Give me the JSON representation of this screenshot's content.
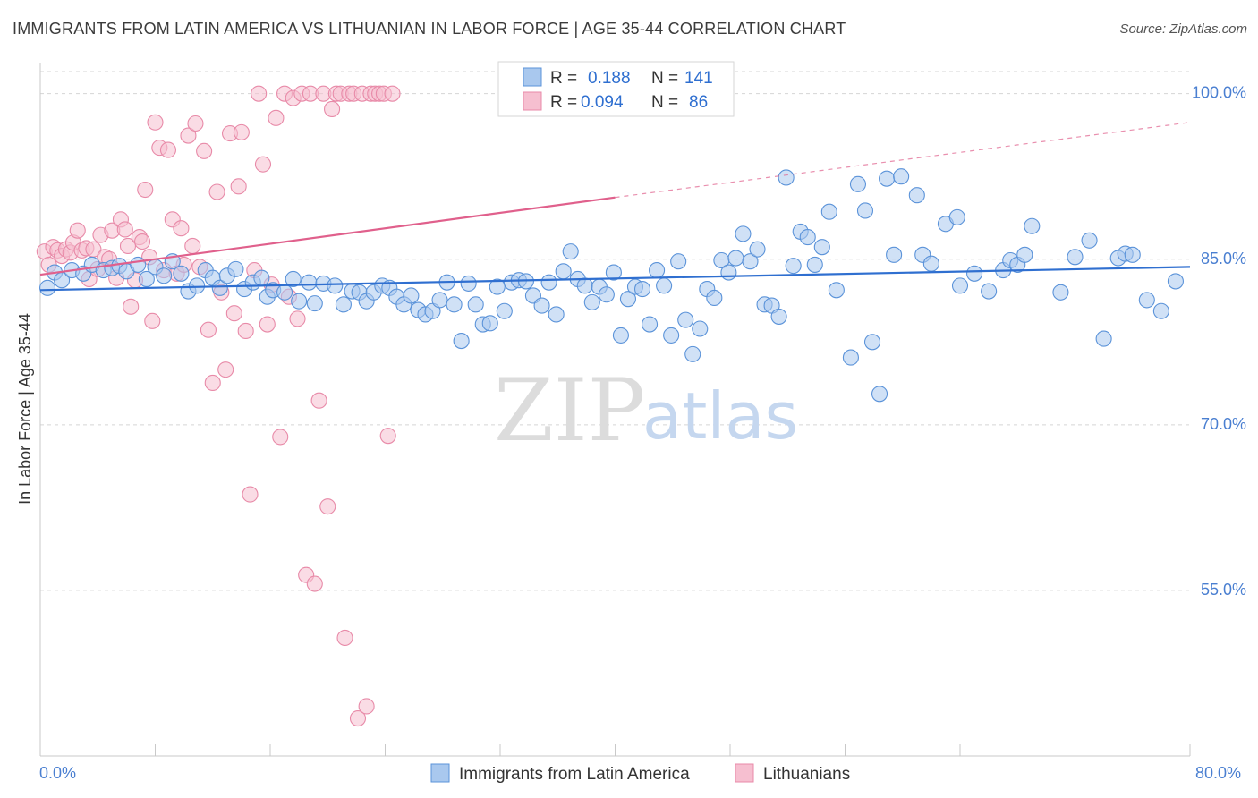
{
  "title": "IMMIGRANTS FROM LATIN AMERICA VS LITHUANIAN IN LABOR FORCE | AGE 35-44 CORRELATION CHART",
  "source": "Source: ZipAtlas.com",
  "watermark": {
    "zip": "ZIP",
    "atlas": "atlas"
  },
  "legend": {
    "blue": {
      "r_label": "R = ",
      "r_value": "0.188",
      "n_label": "N = ",
      "n_value": "141"
    },
    "pink": {
      "r_label": "R = ",
      "r_value": "0.094",
      "n_label": "N = ",
      "n_value": "86"
    }
  },
  "colors": {
    "blue_fill": "#a9c8ee",
    "blue_stroke": "#5b93d9",
    "blue_line": "#2f6fd0",
    "pink_fill": "#f6bfd0",
    "pink_stroke": "#e88aa8",
    "pink_line": "#e0608c",
    "grid": "#d5d5d5",
    "tick_text": "#4a7fd1"
  },
  "chart_data": {
    "type": "scatter",
    "title": "IMMIGRANTS FROM LATIN AMERICA VS LITHUANIAN IN LABOR FORCE | AGE 35-44 CORRELATION CHART",
    "xlabel": "",
    "ylabel": "In Labor Force | Age 35-44",
    "xlim": [
      0,
      80
    ],
    "ylim": [
      40,
      102
    ],
    "x_tick_labels": [
      "0.0%",
      "80.0%"
    ],
    "y_ticks": [
      55,
      70,
      85,
      100
    ],
    "y_tick_labels": [
      "55.0%",
      "70.0%",
      "85.0%",
      "100.0%"
    ],
    "grid": true,
    "legend_position": "top-center",
    "series": [
      {
        "name": "Immigrants from Latin America",
        "color": "#a9c8ee",
        "trend": {
          "x": [
            0,
            80
          ],
          "y": [
            82.2,
            84.3
          ],
          "style": "solid"
        },
        "points": [
          [
            0.5,
            82.4
          ],
          [
            1.0,
            83.8
          ],
          [
            1.5,
            83.1
          ],
          [
            2.2,
            84.0
          ],
          [
            3.0,
            83.7
          ],
          [
            3.6,
            84.5
          ],
          [
            4.4,
            84.0
          ],
          [
            5.0,
            84.2
          ],
          [
            5.5,
            84.4
          ],
          [
            6.0,
            83.9
          ],
          [
            6.8,
            84.5
          ],
          [
            7.4,
            83.2
          ],
          [
            8.0,
            84.3
          ],
          [
            8.6,
            83.5
          ],
          [
            9.2,
            84.8
          ],
          [
            9.8,
            83.7
          ],
          [
            10.3,
            82.1
          ],
          [
            10.9,
            82.6
          ],
          [
            11.5,
            84.0
          ],
          [
            12.0,
            83.3
          ],
          [
            12.5,
            82.4
          ],
          [
            13.0,
            83.5
          ],
          [
            13.6,
            84.1
          ],
          [
            14.2,
            82.3
          ],
          [
            14.8,
            82.9
          ],
          [
            15.4,
            83.3
          ],
          [
            15.8,
            81.6
          ],
          [
            16.2,
            82.2
          ],
          [
            17.0,
            82.0
          ],
          [
            17.6,
            83.2
          ],
          [
            18.0,
            81.2
          ],
          [
            18.7,
            82.9
          ],
          [
            19.1,
            81.0
          ],
          [
            19.7,
            82.8
          ],
          [
            20.5,
            82.6
          ],
          [
            21.1,
            80.9
          ],
          [
            21.7,
            82.1
          ],
          [
            22.2,
            82.0
          ],
          [
            22.7,
            81.2
          ],
          [
            23.2,
            82.0
          ],
          [
            23.8,
            82.6
          ],
          [
            24.3,
            82.4
          ],
          [
            24.8,
            81.6
          ],
          [
            25.3,
            80.9
          ],
          [
            25.8,
            81.7
          ],
          [
            26.3,
            80.4
          ],
          [
            26.8,
            80.0
          ],
          [
            27.3,
            80.3
          ],
          [
            27.8,
            81.3
          ],
          [
            28.3,
            82.9
          ],
          [
            28.8,
            80.9
          ],
          [
            29.3,
            77.6
          ],
          [
            29.8,
            82.8
          ],
          [
            30.3,
            80.9
          ],
          [
            30.8,
            79.1
          ],
          [
            31.3,
            79.2
          ],
          [
            31.8,
            82.5
          ],
          [
            32.3,
            80.3
          ],
          [
            32.8,
            82.9
          ],
          [
            33.3,
            83.1
          ],
          [
            33.8,
            83.0
          ],
          [
            34.3,
            81.7
          ],
          [
            34.9,
            80.8
          ],
          [
            35.4,
            82.9
          ],
          [
            35.9,
            80.0
          ],
          [
            36.4,
            83.9
          ],
          [
            36.9,
            85.7
          ],
          [
            37.4,
            83.2
          ],
          [
            37.9,
            82.6
          ],
          [
            38.4,
            81.1
          ],
          [
            38.9,
            82.5
          ],
          [
            39.4,
            81.8
          ],
          [
            39.9,
            83.8
          ],
          [
            40.4,
            78.1
          ],
          [
            40.9,
            81.4
          ],
          [
            41.4,
            82.5
          ],
          [
            41.9,
            82.3
          ],
          [
            42.4,
            79.1
          ],
          [
            42.9,
            84.0
          ],
          [
            43.4,
            82.6
          ],
          [
            43.9,
            78.1
          ],
          [
            44.4,
            84.8
          ],
          [
            44.9,
            79.5
          ],
          [
            45.4,
            76.4
          ],
          [
            45.9,
            78.7
          ],
          [
            46.4,
            82.3
          ],
          [
            46.9,
            81.5
          ],
          [
            47.4,
            84.9
          ],
          [
            47.9,
            83.8
          ],
          [
            48.4,
            85.1
          ],
          [
            48.9,
            87.3
          ],
          [
            49.4,
            84.8
          ],
          [
            49.9,
            85.9
          ],
          [
            50.4,
            80.9
          ],
          [
            50.9,
            80.8
          ],
          [
            51.4,
            79.8
          ],
          [
            51.9,
            92.4
          ],
          [
            52.4,
            84.4
          ],
          [
            52.9,
            87.5
          ],
          [
            53.4,
            87.0
          ],
          [
            53.9,
            84.5
          ],
          [
            54.4,
            86.1
          ],
          [
            54.9,
            89.3
          ],
          [
            55.4,
            82.2
          ],
          [
            56.4,
            76.1
          ],
          [
            56.9,
            91.8
          ],
          [
            57.4,
            89.4
          ],
          [
            57.9,
            77.5
          ],
          [
            58.4,
            72.8
          ],
          [
            58.9,
            92.3
          ],
          [
            59.4,
            85.4
          ],
          [
            59.9,
            92.5
          ],
          [
            61.0,
            90.8
          ],
          [
            61.4,
            85.4
          ],
          [
            62.0,
            84.6
          ],
          [
            63.0,
            88.2
          ],
          [
            63.8,
            88.8
          ],
          [
            64.0,
            82.6
          ],
          [
            65.0,
            83.7
          ],
          [
            66.0,
            82.1
          ],
          [
            67.0,
            84.0
          ],
          [
            67.5,
            84.9
          ],
          [
            68.0,
            84.5
          ],
          [
            68.5,
            85.4
          ],
          [
            69.0,
            88.0
          ],
          [
            71.0,
            82.0
          ],
          [
            72.0,
            85.2
          ],
          [
            73.0,
            86.7
          ],
          [
            74.0,
            77.8
          ],
          [
            75.0,
            85.1
          ],
          [
            75.5,
            85.5
          ],
          [
            76.0,
            85.4
          ],
          [
            77.0,
            81.3
          ],
          [
            78.0,
            80.3
          ],
          [
            79.0,
            83.0
          ]
        ]
      },
      {
        "name": "Lithuanians",
        "color": "#f6bfd0",
        "trend": {
          "x": [
            0,
            40,
            80
          ],
          "y": [
            83.6,
            90.6,
            97.4
          ],
          "style": "solid-then-dashed"
        },
        "points": [
          [
            0.3,
            85.7
          ],
          [
            0.6,
            84.5
          ],
          [
            0.9,
            86.1
          ],
          [
            1.2,
            85.8
          ],
          [
            1.5,
            85.3
          ],
          [
            1.8,
            85.9
          ],
          [
            2.1,
            85.6
          ],
          [
            2.3,
            86.5
          ],
          [
            2.6,
            87.6
          ],
          [
            2.9,
            85.8
          ],
          [
            3.2,
            86.0
          ],
          [
            3.4,
            83.2
          ],
          [
            3.7,
            85.9
          ],
          [
            4.0,
            84.1
          ],
          [
            4.2,
            87.2
          ],
          [
            4.5,
            85.2
          ],
          [
            4.8,
            85.0
          ],
          [
            5.0,
            87.6
          ],
          [
            5.3,
            83.3
          ],
          [
            5.6,
            88.6
          ],
          [
            5.9,
            87.7
          ],
          [
            6.1,
            86.2
          ],
          [
            6.3,
            80.7
          ],
          [
            6.6,
            83.1
          ],
          [
            6.9,
            87.0
          ],
          [
            7.1,
            86.6
          ],
          [
            7.3,
            91.3
          ],
          [
            7.6,
            85.2
          ],
          [
            7.8,
            79.4
          ],
          [
            8.0,
            97.4
          ],
          [
            8.3,
            95.1
          ],
          [
            8.6,
            84.0
          ],
          [
            8.9,
            94.9
          ],
          [
            9.2,
            88.6
          ],
          [
            9.5,
            83.7
          ],
          [
            9.8,
            87.8
          ],
          [
            10.0,
            84.5
          ],
          [
            10.3,
            96.2
          ],
          [
            10.6,
            86.2
          ],
          [
            10.8,
            97.3
          ],
          [
            11.1,
            84.3
          ],
          [
            11.4,
            94.8
          ],
          [
            11.7,
            78.6
          ],
          [
            12.0,
            73.8
          ],
          [
            12.3,
            91.1
          ],
          [
            12.6,
            82.0
          ],
          [
            12.9,
            75.0
          ],
          [
            13.2,
            96.4
          ],
          [
            13.5,
            80.1
          ],
          [
            13.8,
            91.6
          ],
          [
            14.0,
            96.5
          ],
          [
            14.3,
            78.5
          ],
          [
            14.6,
            63.7
          ],
          [
            14.9,
            84.0
          ],
          [
            15.2,
            100.0
          ],
          [
            15.5,
            93.6
          ],
          [
            15.8,
            79.1
          ],
          [
            16.1,
            82.7
          ],
          [
            16.4,
            97.8
          ],
          [
            16.7,
            68.9
          ],
          [
            17.0,
            100.0
          ],
          [
            17.3,
            81.6
          ],
          [
            17.6,
            99.6
          ],
          [
            17.9,
            79.6
          ],
          [
            18.2,
            100.0
          ],
          [
            18.5,
            56.4
          ],
          [
            18.8,
            100.0
          ],
          [
            19.1,
            55.6
          ],
          [
            19.4,
            72.2
          ],
          [
            19.7,
            100.0
          ],
          [
            20.0,
            62.6
          ],
          [
            20.3,
            98.6
          ],
          [
            20.6,
            100.0
          ],
          [
            20.9,
            100.0
          ],
          [
            21.2,
            50.7
          ],
          [
            21.5,
            100.0
          ],
          [
            21.8,
            100.0
          ],
          [
            22.1,
            43.4
          ],
          [
            22.4,
            100.0
          ],
          [
            22.7,
            44.5
          ],
          [
            23.0,
            100.0
          ],
          [
            23.3,
            100.0
          ],
          [
            23.6,
            100.0
          ],
          [
            23.9,
            100.0
          ],
          [
            24.2,
            69.0
          ],
          [
            24.5,
            100.0
          ]
        ]
      }
    ]
  },
  "bottom_legend": {
    "blue_label": "Immigrants from Latin America",
    "pink_label": "Lithuanians"
  }
}
